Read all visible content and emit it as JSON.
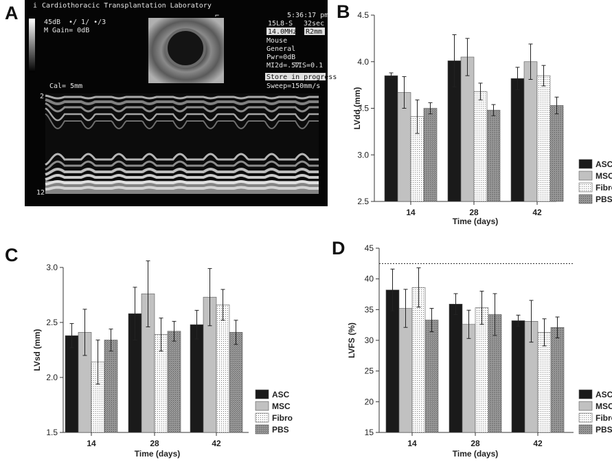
{
  "panels": {
    "a": "A",
    "b": "B",
    "c": "C",
    "d": "D"
  },
  "colors": {
    "ASC": "#1a1a1a",
    "MSC": "#c4c4c4",
    "Fibro": "#fafafa",
    "PBS": "#8a8a8a"
  },
  "ultrasound": {
    "header": "Cardiothoracic Transplantation Laboratory",
    "info_i": "i",
    "gain": "45dB",
    "dots": "•/ 1/ •/3",
    "mgain": "M Gain=   0dB",
    "time": "5:36:17 pm",
    "probe": "15L8-S",
    "duration": "32sec",
    "freq": "14.0MHz",
    "depth": "R2mm",
    "mode1": "Mouse",
    "mode2": "General",
    "pwr": "Pwr=0dB",
    "mi": "MI2d=.57",
    "tis": "TIS=0.1",
    "store": "Store in progress",
    "sweep": "Sweep=150mm/s",
    "cal": "Cal=  5mm",
    "scale_top": "2",
    "scale_bottom": "12"
  },
  "chart_data": [
    {
      "panel": "B",
      "type": "bar",
      "categories": [
        "14",
        "28",
        "42"
      ],
      "xlabel": "Time (days)",
      "ylabel": "LVdd (mm)",
      "ylim": [
        2.5,
        4.5
      ],
      "yticks": [
        "2.5",
        "3.0",
        "3.5",
        "4.0",
        "4.5"
      ],
      "series": [
        {
          "name": "ASC",
          "values": [
            3.85,
            4.01,
            3.82
          ],
          "errors": [
            0.03,
            0.28,
            0.12
          ]
        },
        {
          "name": "MSC",
          "values": [
            3.67,
            4.05,
            4.0
          ],
          "errors": [
            0.17,
            0.2,
            0.19
          ]
        },
        {
          "name": "Fibro",
          "values": [
            3.41,
            3.68,
            3.85
          ],
          "errors": [
            0.18,
            0.09,
            0.11
          ]
        },
        {
          "name": "PBS",
          "values": [
            3.5,
            3.48,
            3.53
          ],
          "errors": [
            0.06,
            0.06,
            0.09
          ]
        }
      ]
    },
    {
      "panel": "C",
      "type": "bar",
      "categories": [
        "14",
        "28",
        "42"
      ],
      "xlabel": "Time (days)",
      "ylabel": "LVsd (mm)",
      "ylim": [
        1.5,
        3.0
      ],
      "yticks": [
        "1.5",
        "2.0",
        "2.5",
        "3.0"
      ],
      "series": [
        {
          "name": "ASC",
          "values": [
            2.38,
            2.58,
            2.48
          ],
          "errors": [
            0.11,
            0.24,
            0.13
          ]
        },
        {
          "name": "MSC",
          "values": [
            2.41,
            2.76,
            2.73
          ],
          "errors": [
            0.21,
            0.3,
            0.26
          ]
        },
        {
          "name": "Fibro",
          "values": [
            2.14,
            2.39,
            2.66
          ],
          "errors": [
            0.2,
            0.15,
            0.14
          ]
        },
        {
          "name": "PBS",
          "values": [
            2.34,
            2.42,
            2.41
          ],
          "errors": [
            0.1,
            0.09,
            0.11
          ]
        }
      ]
    },
    {
      "panel": "D",
      "type": "bar",
      "categories": [
        "14",
        "28",
        "42"
      ],
      "xlabel": "Time (days)",
      "ylabel": "LVFS (%)",
      "ylim": [
        15,
        45
      ],
      "yticks": [
        "15",
        "20",
        "25",
        "30",
        "35",
        "40",
        "45"
      ],
      "reference_line": 42.5,
      "series": [
        {
          "name": "ASC",
          "values": [
            38.2,
            35.9,
            33.2
          ],
          "errors": [
            3.4,
            1.7,
            0.9
          ]
        },
        {
          "name": "MSC",
          "values": [
            35.2,
            32.6,
            33.1
          ],
          "errors": [
            3.1,
            2.3,
            3.4
          ]
        },
        {
          "name": "Fibro",
          "values": [
            38.6,
            35.3,
            31.3
          ],
          "errors": [
            3.2,
            2.7,
            2.2
          ]
        },
        {
          "name": "PBS",
          "values": [
            33.3,
            34.2,
            32.1
          ],
          "errors": [
            1.9,
            3.4,
            1.7
          ]
        }
      ]
    }
  ]
}
